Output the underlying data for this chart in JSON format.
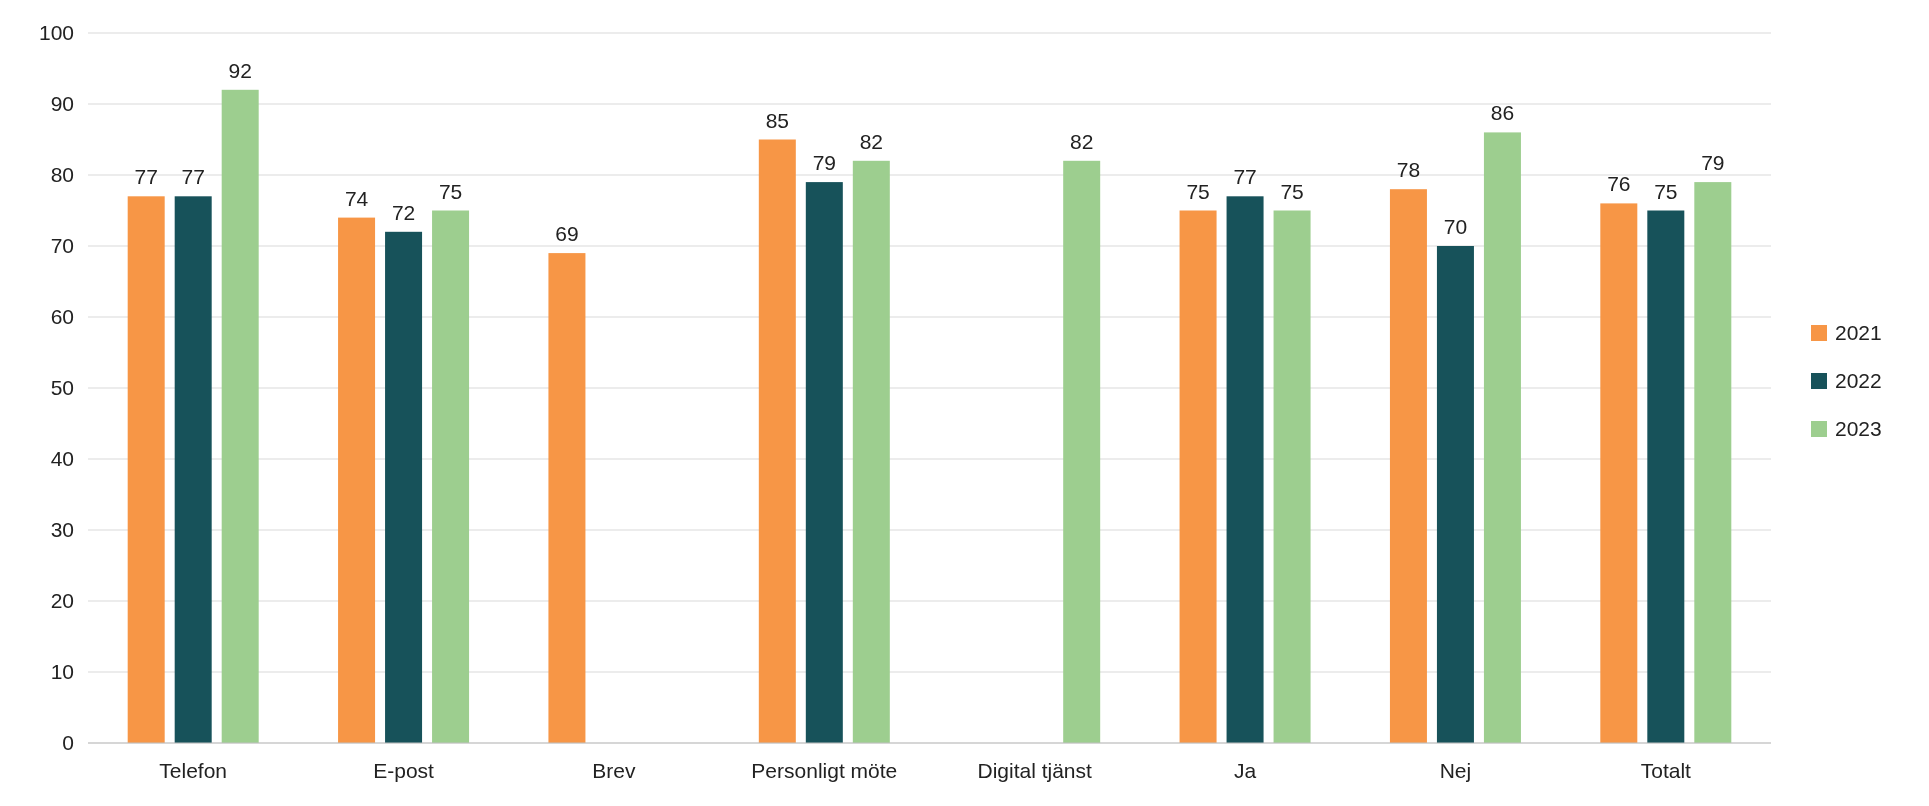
{
  "chart_data": {
    "type": "bar",
    "categories": [
      "Telefon",
      "E-post",
      "Brev",
      "Personligt möte",
      "Digital tjänst",
      "Ja",
      "Nej",
      "Totalt"
    ],
    "series": [
      {
        "name": "2021",
        "color": "#f79646",
        "values": [
          77,
          74,
          69,
          85,
          null,
          75,
          78,
          76
        ]
      },
      {
        "name": "2022",
        "color": "#17525a",
        "values": [
          77,
          72,
          null,
          79,
          null,
          77,
          70,
          75
        ]
      },
      {
        "name": "2023",
        "color": "#9dce8f",
        "values": [
          92,
          75,
          null,
          82,
          82,
          75,
          86,
          79
        ]
      }
    ],
    "ylim": [
      0,
      100
    ],
    "yticks": [
      0,
      10,
      20,
      30,
      40,
      50,
      60,
      70,
      80,
      90,
      100
    ],
    "grid": "y",
    "legend": "right",
    "data_labels": true
  }
}
